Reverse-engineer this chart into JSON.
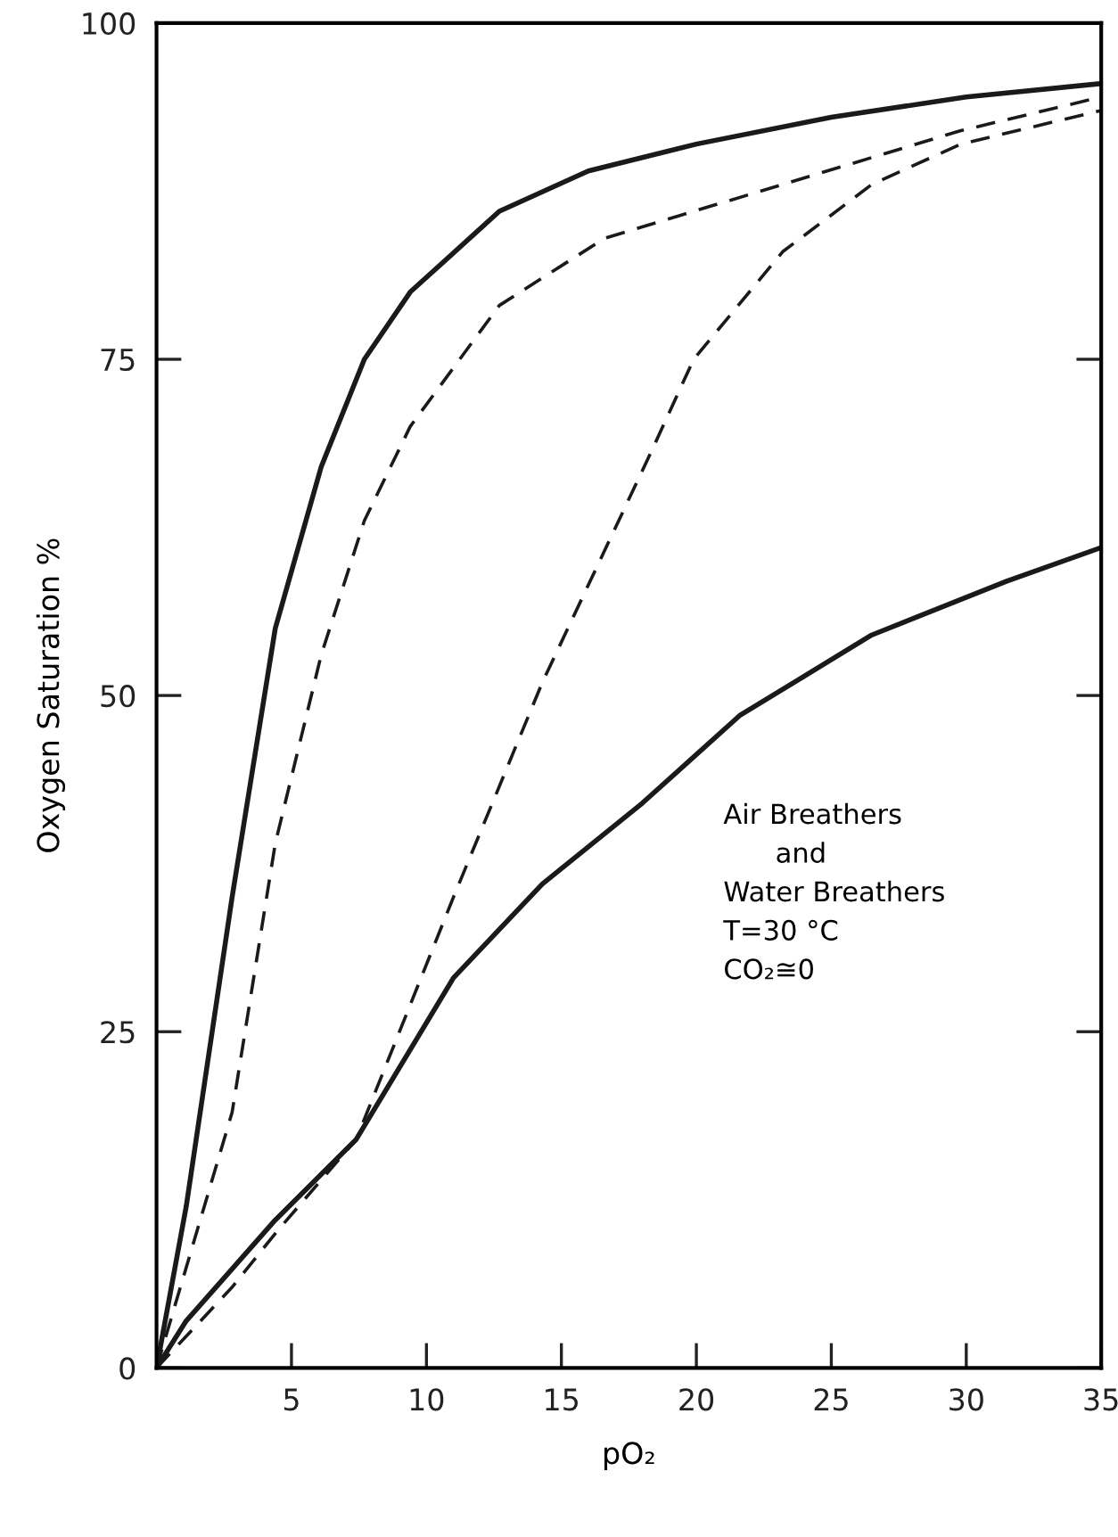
{
  "chart_data": {
    "type": "line",
    "xlabel": "pO₂",
    "ylabel": "Oxygen Saturation %",
    "xlim": [
      0,
      35
    ],
    "ylim": [
      0,
      100
    ],
    "xticks": [
      5,
      10,
      15,
      20,
      25,
      30,
      35
    ],
    "yticks": [
      0,
      25,
      50,
      75,
      100
    ],
    "grid": false,
    "legend": false,
    "marker": "none",
    "annotations": [
      "Air Breathers\n      and\nWater Breathers\nT=30 °C\nCO₂≅0"
    ],
    "series": [
      {
        "color": "#1a1a1a",
        "line_style": "solid",
        "x": [
          0,
          1.1,
          2.8,
          4.4,
          6.1,
          7.7,
          9.4,
          12.7,
          16,
          20,
          25,
          30,
          35
        ],
        "values": [
          0,
          12,
          35,
          55,
          67,
          75,
          80,
          86,
          89,
          91,
          93,
          94.5,
          95.5
        ]
      },
      {
        "color": "#1a1a1a",
        "line_style": "dashed",
        "x": [
          0,
          2.8,
          4.4,
          6.1,
          7.7,
          9.4,
          12.7,
          16.6,
          23.2,
          29.8,
          35
        ],
        "values": [
          0,
          19,
          39,
          53,
          63,
          70,
          79,
          84,
          88,
          92,
          94.5
        ]
      },
      {
        "color": "#1a1a1a",
        "line_style": "dashed",
        "x": [
          0,
          2.8,
          4.4,
          7.4,
          11,
          14.3,
          18.3,
          19.9,
          23.2,
          26.5,
          29.8,
          35
        ],
        "values": [
          0,
          6,
          10,
          17,
          35,
          51,
          68,
          75,
          83,
          88,
          91,
          93.5
        ]
      },
      {
        "color": "#1a1a1a",
        "line_style": "solid",
        "x": [
          0,
          1.1,
          4.4,
          7.4,
          11,
          14.3,
          18,
          21.6,
          26.5,
          31.5,
          35
        ],
        "values": [
          0,
          3.5,
          11,
          17,
          29,
          36,
          42,
          48.5,
          54.5,
          58.5,
          61
        ]
      }
    ]
  }
}
